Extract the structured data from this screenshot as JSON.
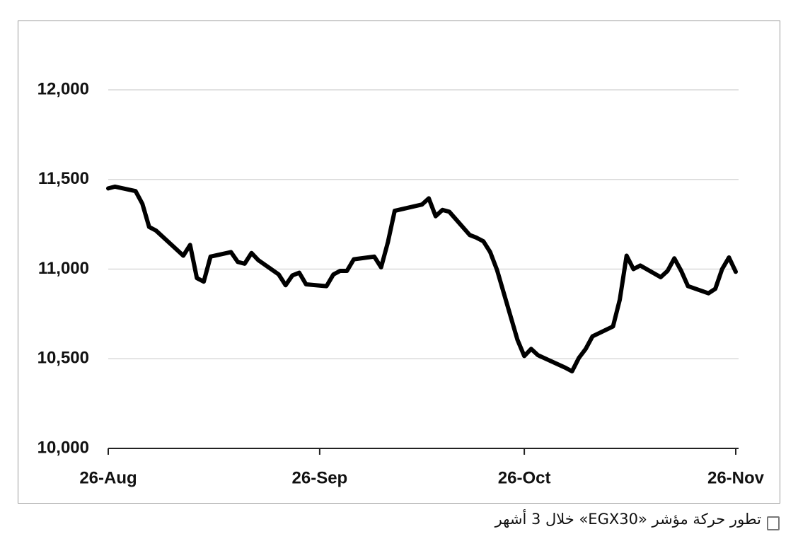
{
  "chart_data": {
    "type": "line",
    "caption": "تطور حركة مؤشر «EGX30» خلال 3 أشهر",
    "x": [
      "26-Aug",
      "27-Aug",
      "30-Aug",
      "31-Aug",
      "1-Sep",
      "2-Sep",
      "6-Sep",
      "7-Sep",
      "8-Sep",
      "9-Sep",
      "10-Sep",
      "13-Sep",
      "14-Sep",
      "15-Sep",
      "16-Sep",
      "17-Sep",
      "20-Sep",
      "21-Sep",
      "22-Sep",
      "23-Sep",
      "24-Sep",
      "27-Sep",
      "28-Sep",
      "29-Sep",
      "30-Sep",
      "1-Oct",
      "4-Oct",
      "5-Oct",
      "6-Oct",
      "7-Oct",
      "11-Oct",
      "12-Oct",
      "13-Oct",
      "14-Oct",
      "15-Oct",
      "18-Oct",
      "19-Oct",
      "20-Oct",
      "21-Oct",
      "22-Oct",
      "25-Oct",
      "26-Oct",
      "27-Oct",
      "28-Oct",
      "1-Nov",
      "2-Nov",
      "3-Nov",
      "4-Nov",
      "5-Nov",
      "8-Nov",
      "9-Nov",
      "10-Nov",
      "11-Nov",
      "12-Nov",
      "15-Nov",
      "16-Nov",
      "17-Nov",
      "18-Nov",
      "19-Nov",
      "22-Nov",
      "23-Nov",
      "24-Nov",
      "25-Nov",
      "26-Nov"
    ],
    "series": [
      {
        "color": "#000000",
        "values": [
          11450,
          11460,
          11435,
          11365,
          11235,
          11215,
          11075,
          11135,
          10950,
          10930,
          11070,
          11095,
          11040,
          11030,
          11090,
          11050,
          10970,
          10910,
          10965,
          10980,
          10915,
          10905,
          10970,
          10990,
          10990,
          11055,
          11070,
          11010,
          11150,
          11325,
          11360,
          11395,
          11295,
          11330,
          11320,
          11190,
          11175,
          11155,
          11095,
          10995,
          10605,
          10515,
          10555,
          10520,
          10450,
          10430,
          10505,
          10555,
          10625,
          10680,
          10830,
          11075,
          11000,
          11020,
          10955,
          10990,
          11060,
          10990,
          10905,
          10865,
          10890,
          11000,
          11065,
          10985
        ]
      }
    ],
    "xlim": [
      "26-Aug",
      "26-Nov"
    ],
    "xticks": [
      "26-Aug",
      "26-Sep",
      "26-Oct",
      "26-Nov"
    ],
    "ylim": [
      10000,
      12000
    ],
    "yticks": [
      {
        "value": 10000,
        "label": "10,000"
      },
      {
        "value": 10500,
        "label": "10,500"
      },
      {
        "value": 11000,
        "label": "11,000"
      },
      {
        "value": 11500,
        "label": "11,500"
      },
      {
        "value": 12000,
        "label": "12,000"
      }
    ],
    "grid": true
  }
}
